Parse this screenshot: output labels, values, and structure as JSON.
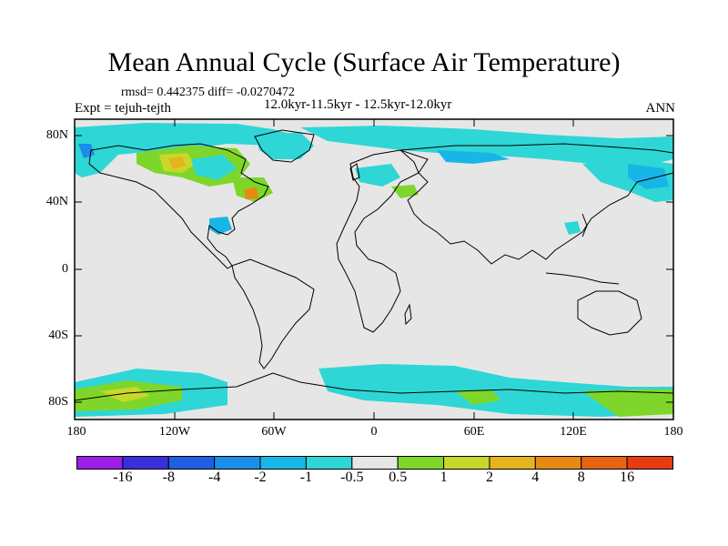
{
  "title": "Mean Annual Cycle (Surface Air Temperature)",
  "stats": "rmsd= 0.442375 diff= -0.0270472",
  "period": "12.0kyr-11.5kyr - 12.5kyr-12.0kyr",
  "experiment": "Expt = tejuh-tejth",
  "season": "ANN",
  "lat_labels": [
    "80N",
    "40N",
    "0",
    "40S",
    "80S"
  ],
  "lon_labels": [
    "180",
    "120W",
    "60W",
    "0",
    "60E",
    "120E",
    "180"
  ],
  "colorbar": {
    "colors": [
      "#9a1ee6",
      "#3a2fd8",
      "#1f5ee0",
      "#1a8ee8",
      "#18b6e6",
      "#2fd6d6",
      "#e6e6e6",
      "#7fd62a",
      "#c8d82a",
      "#e6b41e",
      "#e68a14",
      "#e66414",
      "#e63c10"
    ],
    "labels": [
      "-16",
      "-8",
      "-4",
      "-2",
      "-1",
      "-0.5",
      "0.5",
      "1",
      "2",
      "4",
      "8",
      "16"
    ]
  },
  "map_colors": {
    "background": "#e6e6e6",
    "anomaly_neg_small": "#2fd6d6",
    "anomaly_neg": "#18b6e6",
    "anomaly_neg_mid": "#1a8ee8",
    "anomaly_neg_large": "#1f5ee0",
    "anomaly_pos_small": "#7fd62a",
    "anomaly_pos": "#c8d82a",
    "anomaly_pos_mid": "#e6b41e",
    "anomaly_pos_large": "#e68a14"
  }
}
